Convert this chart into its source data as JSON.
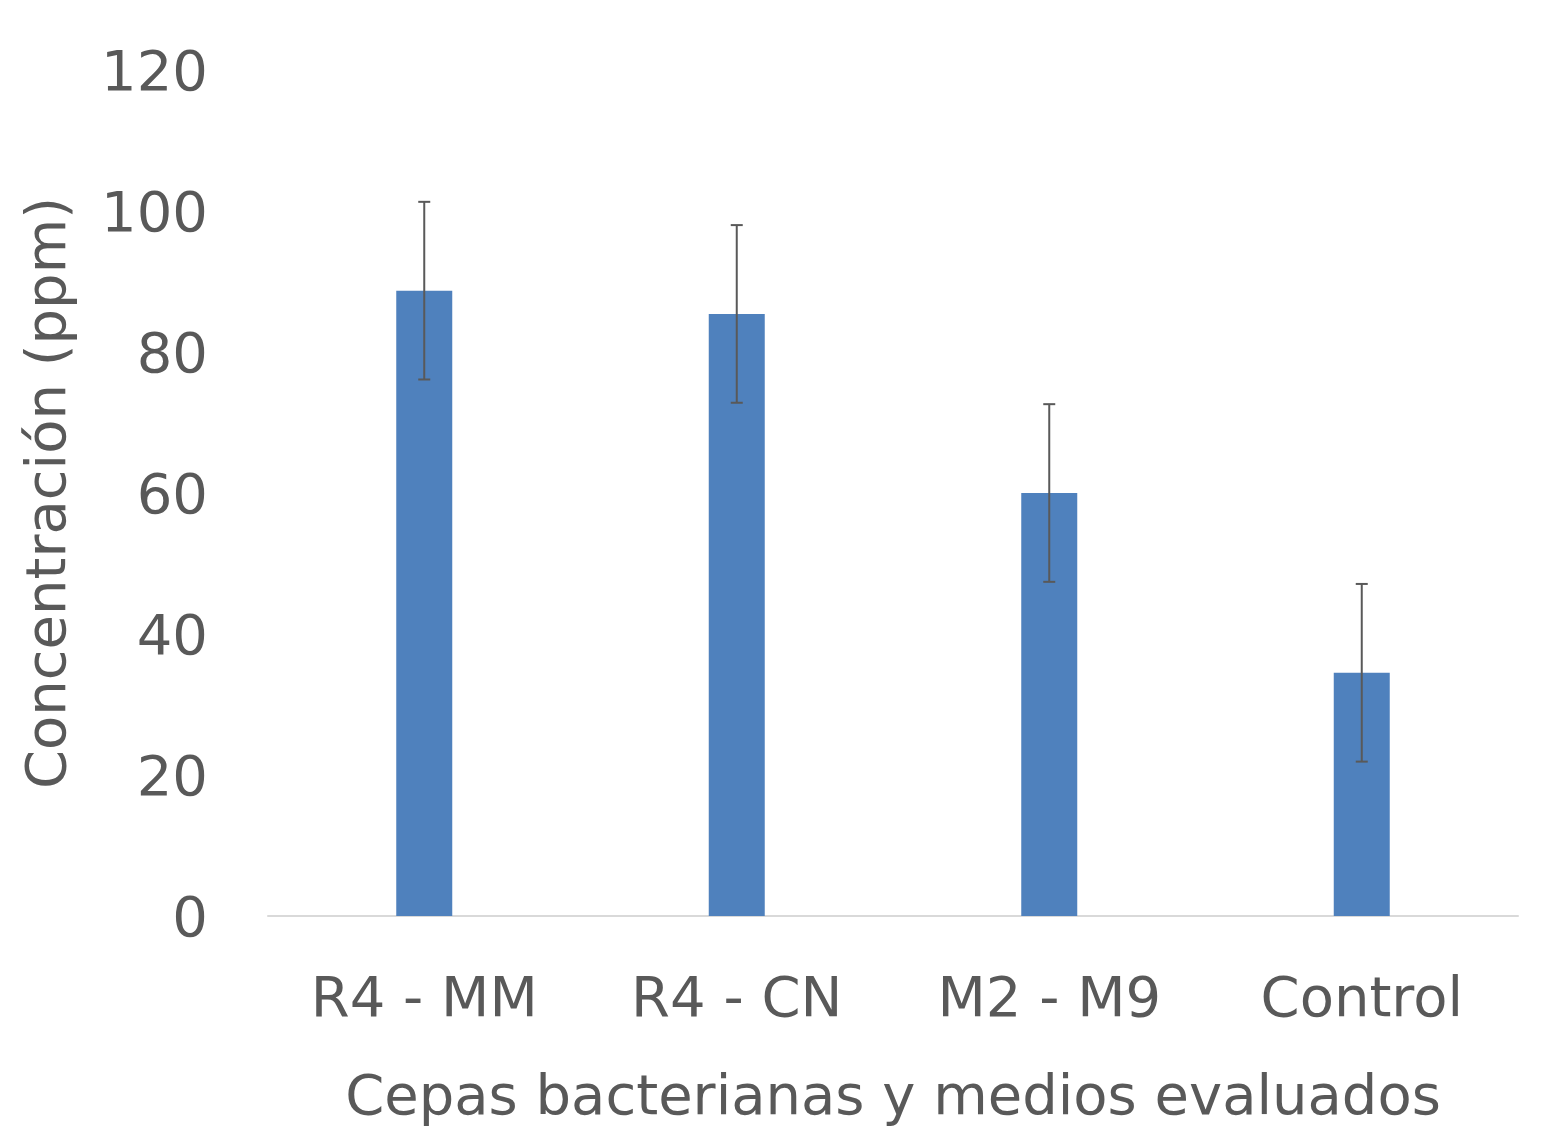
{
  "chart_data": {
    "type": "bar",
    "xlabel": "Cepas bacterianas y medios evaluados",
    "ylabel": "Concentración (ppm)",
    "categories": [
      "R4 - MM",
      "R4 - CN",
      "M2 - M9",
      "Control"
    ],
    "values": [
      88.7,
      85.4,
      60.0,
      34.5
    ],
    "errors": [
      12.6,
      12.6,
      12.6,
      12.6
    ],
    "color": "#4f81bd",
    "ylim": [
      0,
      120
    ],
    "yticks": [
      0,
      20,
      40,
      60,
      80,
      100,
      120
    ],
    "grid": false
  }
}
